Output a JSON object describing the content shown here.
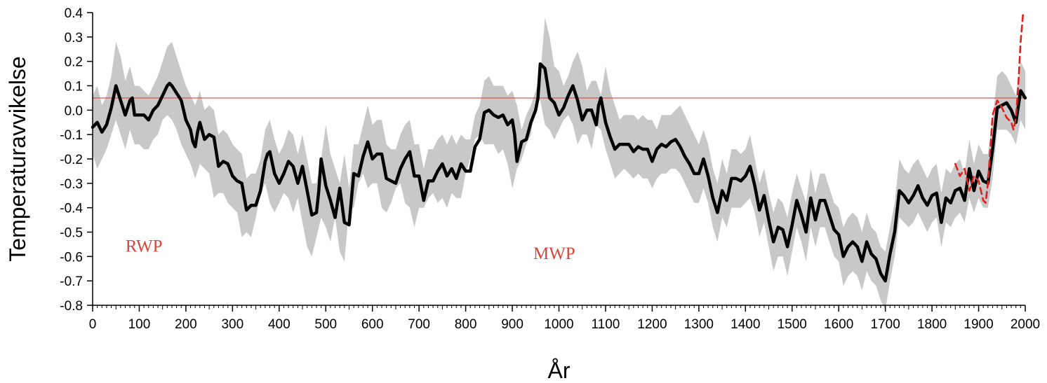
{
  "chart_data": {
    "type": "line",
    "title": "",
    "xlabel": "År",
    "ylabel": "Temperaturavvikelse",
    "xlim": [
      0,
      2000
    ],
    "ylim": [
      -0.8,
      0.4
    ],
    "xticks": [
      0,
      100,
      200,
      300,
      400,
      500,
      600,
      700,
      800,
      900,
      1000,
      1100,
      1200,
      1300,
      1400,
      1500,
      1600,
      1700,
      1800,
      1900,
      2000
    ],
    "yticks": [
      {
        "value": 0.4,
        "label": "0.4"
      },
      {
        "value": 0.3,
        "label": "0.3"
      },
      {
        "value": 0.2,
        "label": "0.2"
      },
      {
        "value": 0.1,
        "label": "0.1"
      },
      {
        "value": 0.0,
        "label": "0.0"
      },
      {
        "value": -0.1,
        "label": "-0.1"
      },
      {
        "value": -0.2,
        "label": "-0.2"
      },
      {
        "value": -0.3,
        "label": "-0.3"
      },
      {
        "value": -0.4,
        "label": "-0.4"
      },
      {
        "value": -0.5,
        "label": "-0.5"
      },
      {
        "value": -0.6,
        "label": "-0.6"
      },
      {
        "value": -0.7,
        "label": "-0.7"
      },
      {
        "value": -0.8,
        "label": "-0.8"
      }
    ],
    "grid": false,
    "reference_line": {
      "y": 0.05,
      "color": "#e0413a"
    },
    "annotations": [
      {
        "text": "RWP",
        "x": 110,
        "y": -0.58,
        "color": "#d9453b"
      },
      {
        "text": "MWP",
        "x": 990,
        "y": -0.61,
        "color": "#d9453b"
      }
    ],
    "series": [
      {
        "type": "line",
        "color": "#000000",
        "x": [
          0,
          10,
          20,
          30,
          40,
          50,
          55,
          60,
          70,
          80,
          85,
          90,
          100,
          110,
          120,
          130,
          140,
          150,
          160,
          165,
          170,
          180,
          190,
          200,
          210,
          215,
          220,
          225,
          230,
          240,
          250,
          260,
          270,
          280,
          290,
          300,
          310,
          320,
          330,
          340,
          350,
          360,
          370,
          375,
          380,
          390,
          400,
          410,
          420,
          430,
          440,
          450,
          460,
          470,
          480,
          485,
          490,
          500,
          510,
          520,
          530,
          540,
          550,
          560,
          570,
          580,
          590,
          600,
          610,
          620,
          630,
          640,
          650,
          660,
          670,
          680,
          690,
          700,
          710,
          720,
          730,
          740,
          750,
          760,
          770,
          780,
          790,
          800,
          810,
          820,
          830,
          840,
          850,
          860,
          870,
          880,
          890,
          900,
          905,
          910,
          920,
          930,
          940,
          950,
          955,
          960,
          970,
          980,
          990,
          1000,
          1010,
          1020,
          1030,
          1040,
          1050,
          1060,
          1070,
          1080,
          1085,
          1090,
          1100,
          1110,
          1120,
          1130,
          1140,
          1150,
          1160,
          1170,
          1180,
          1190,
          1200,
          1210,
          1220,
          1230,
          1240,
          1250,
          1260,
          1270,
          1280,
          1290,
          1300,
          1310,
          1320,
          1330,
          1340,
          1350,
          1360,
          1370,
          1380,
          1390,
          1400,
          1410,
          1420,
          1430,
          1440,
          1450,
          1460,
          1470,
          1480,
          1490,
          1500,
          1510,
          1520,
          1530,
          1540,
          1550,
          1560,
          1570,
          1580,
          1590,
          1600,
          1610,
          1620,
          1630,
          1640,
          1650,
          1660,
          1670,
          1680,
          1690,
          1700,
          1710,
          1720,
          1730,
          1740,
          1750,
          1760,
          1770,
          1780,
          1790,
          1800,
          1810,
          1820,
          1830,
          1840,
          1850,
          1860,
          1870,
          1880,
          1890,
          1900,
          1910,
          1920,
          1930,
          1940,
          1950,
          1960,
          1970,
          1980,
          1990,
          2000
        ],
        "y": [
          -0.07,
          -0.05,
          -0.09,
          -0.06,
          0.01,
          0.1,
          0.07,
          0.04,
          -0.02,
          0.04,
          0.05,
          -0.02,
          -0.02,
          -0.02,
          -0.04,
          0.0,
          0.02,
          0.06,
          0.1,
          0.11,
          0.1,
          0.07,
          0.04,
          -0.04,
          -0.08,
          -0.13,
          -0.15,
          -0.09,
          -0.05,
          -0.12,
          -0.1,
          -0.11,
          -0.23,
          -0.21,
          -0.22,
          -0.27,
          -0.29,
          -0.3,
          -0.41,
          -0.39,
          -0.39,
          -0.33,
          -0.21,
          -0.18,
          -0.17,
          -0.26,
          -0.3,
          -0.26,
          -0.21,
          -0.23,
          -0.3,
          -0.23,
          -0.33,
          -0.43,
          -0.42,
          -0.33,
          -0.2,
          -0.31,
          -0.37,
          -0.44,
          -0.32,
          -0.46,
          -0.47,
          -0.26,
          -0.27,
          -0.19,
          -0.13,
          -0.2,
          -0.18,
          -0.18,
          -0.28,
          -0.29,
          -0.3,
          -0.24,
          -0.2,
          -0.17,
          -0.27,
          -0.27,
          -0.37,
          -0.29,
          -0.29,
          -0.25,
          -0.22,
          -0.27,
          -0.24,
          -0.28,
          -0.22,
          -0.25,
          -0.25,
          -0.15,
          -0.12,
          -0.01,
          0.0,
          -0.02,
          -0.03,
          -0.02,
          -0.06,
          -0.04,
          -0.1,
          -0.21,
          -0.13,
          -0.12,
          -0.05,
          0.0,
          0.05,
          0.19,
          0.17,
          0.05,
          0.03,
          -0.02,
          0.01,
          0.06,
          0.1,
          0.04,
          -0.04,
          0.0,
          0.0,
          -0.06,
          0.02,
          0.05,
          -0.05,
          -0.11,
          -0.16,
          -0.14,
          -0.14,
          -0.14,
          -0.17,
          -0.15,
          -0.16,
          -0.16,
          -0.21,
          -0.16,
          -0.14,
          -0.15,
          -0.13,
          -0.12,
          -0.15,
          -0.19,
          -0.22,
          -0.26,
          -0.26,
          -0.2,
          -0.27,
          -0.36,
          -0.42,
          -0.33,
          -0.37,
          -0.28,
          -0.28,
          -0.29,
          -0.27,
          -0.23,
          -0.31,
          -0.41,
          -0.35,
          -0.45,
          -0.54,
          -0.48,
          -0.49,
          -0.56,
          -0.47,
          -0.37,
          -0.43,
          -0.5,
          -0.36,
          -0.45,
          -0.37,
          -0.37,
          -0.43,
          -0.49,
          -0.51,
          -0.6,
          -0.56,
          -0.54,
          -0.56,
          -0.62,
          -0.54,
          -0.59,
          -0.61,
          -0.67,
          -0.7,
          -0.59,
          -0.5,
          -0.33,
          -0.35,
          -0.38,
          -0.35,
          -0.31,
          -0.36,
          -0.39,
          -0.35,
          -0.34,
          -0.46,
          -0.36,
          -0.38,
          -0.33,
          -0.32,
          -0.37,
          -0.24,
          -0.33,
          -0.25,
          -0.29,
          -0.3,
          -0.16,
          0.01,
          0.02,
          0.03,
          0.0,
          -0.05,
          0.08,
          0.05
        ]
      },
      {
        "type": "band",
        "color": "#c8c8c8",
        "x": [
          0,
          10,
          20,
          30,
          40,
          50,
          60,
          70,
          80,
          90,
          100,
          110,
          120,
          130,
          140,
          150,
          160,
          170,
          180,
          190,
          200,
          210,
          220,
          230,
          240,
          250,
          260,
          270,
          280,
          290,
          300,
          310,
          320,
          330,
          340,
          350,
          360,
          370,
          380,
          390,
          400,
          410,
          420,
          430,
          440,
          450,
          460,
          470,
          480,
          490,
          500,
          510,
          520,
          530,
          540,
          550,
          560,
          570,
          580,
          590,
          600,
          610,
          620,
          630,
          640,
          650,
          660,
          670,
          680,
          690,
          700,
          710,
          720,
          730,
          740,
          750,
          760,
          770,
          780,
          790,
          800,
          810,
          820,
          830,
          840,
          850,
          860,
          870,
          880,
          890,
          900,
          910,
          920,
          930,
          940,
          950,
          960,
          970,
          980,
          990,
          1000,
          1010,
          1020,
          1030,
          1040,
          1050,
          1060,
          1070,
          1080,
          1090,
          1100,
          1110,
          1120,
          1130,
          1140,
          1150,
          1160,
          1170,
          1180,
          1190,
          1200,
          1210,
          1220,
          1230,
          1240,
          1250,
          1260,
          1270,
          1280,
          1290,
          1300,
          1310,
          1320,
          1330,
          1340,
          1350,
          1360,
          1370,
          1380,
          1390,
          1400,
          1410,
          1420,
          1430,
          1440,
          1450,
          1460,
          1470,
          1480,
          1490,
          1500,
          1510,
          1520,
          1530,
          1540,
          1550,
          1560,
          1570,
          1580,
          1590,
          1600,
          1610,
          1620,
          1630,
          1640,
          1650,
          1660,
          1670,
          1680,
          1690,
          1700,
          1710,
          1720,
          1730,
          1740,
          1750,
          1760,
          1770,
          1780,
          1790,
          1800,
          1810,
          1820,
          1830,
          1840,
          1850,
          1860,
          1870,
          1880,
          1890,
          1900,
          1910,
          1920,
          1930,
          1940,
          1950,
          1960,
          1970,
          1980,
          1990,
          2000
        ],
        "lower": [
          -0.18,
          -0.24,
          -0.2,
          -0.16,
          -0.1,
          -0.04,
          -0.1,
          -0.16,
          -0.08,
          -0.14,
          -0.14,
          -0.16,
          -0.16,
          -0.12,
          -0.1,
          -0.04,
          -0.02,
          -0.04,
          -0.08,
          -0.14,
          -0.18,
          -0.22,
          -0.28,
          -0.22,
          -0.24,
          -0.26,
          -0.36,
          -0.34,
          -0.34,
          -0.38,
          -0.4,
          -0.42,
          -0.52,
          -0.5,
          -0.52,
          -0.44,
          -0.34,
          -0.3,
          -0.38,
          -0.42,
          -0.38,
          -0.34,
          -0.36,
          -0.42,
          -0.36,
          -0.46,
          -0.56,
          -0.6,
          -0.52,
          -0.44,
          -0.48,
          -0.54,
          -0.44,
          -0.58,
          -0.62,
          -0.4,
          -0.4,
          -0.3,
          -0.26,
          -0.32,
          -0.3,
          -0.3,
          -0.4,
          -0.42,
          -0.38,
          -0.32,
          -0.3,
          -0.38,
          -0.4,
          -0.48,
          -0.4,
          -0.4,
          -0.36,
          -0.34,
          -0.38,
          -0.36,
          -0.4,
          -0.34,
          -0.36,
          -0.36,
          -0.26,
          -0.2,
          -0.12,
          -0.1,
          -0.14,
          -0.14,
          -0.14,
          -0.18,
          -0.16,
          -0.22,
          -0.32,
          -0.24,
          -0.2,
          -0.14,
          -0.1,
          0.04,
          0.04,
          -0.06,
          -0.08,
          -0.12,
          -0.08,
          -0.04,
          -0.02,
          -0.06,
          -0.14,
          -0.1,
          -0.1,
          -0.16,
          -0.06,
          -0.08,
          -0.16,
          -0.22,
          -0.28,
          -0.26,
          -0.24,
          -0.26,
          -0.28,
          -0.26,
          -0.28,
          -0.28,
          -0.32,
          -0.28,
          -0.26,
          -0.26,
          -0.24,
          -0.24,
          -0.26,
          -0.3,
          -0.34,
          -0.38,
          -0.38,
          -0.32,
          -0.38,
          -0.48,
          -0.54,
          -0.44,
          -0.48,
          -0.4,
          -0.4,
          -0.4,
          -0.38,
          -0.36,
          -0.42,
          -0.52,
          -0.46,
          -0.56,
          -0.66,
          -0.6,
          -0.6,
          -0.68,
          -0.58,
          -0.48,
          -0.54,
          -0.62,
          -0.48,
          -0.56,
          -0.48,
          -0.48,
          -0.54,
          -0.6,
          -0.62,
          -0.72,
          -0.68,
          -0.66,
          -0.68,
          -0.74,
          -0.66,
          -0.7,
          -0.72,
          -0.78,
          -0.82,
          -0.7,
          -0.6,
          -0.44,
          -0.46,
          -0.48,
          -0.46,
          -0.42,
          -0.46,
          -0.5,
          -0.46,
          -0.44,
          -0.56,
          -0.46,
          -0.48,
          -0.44,
          -0.42,
          -0.46,
          -0.36,
          -0.42,
          -0.36,
          -0.4,
          -0.4,
          -0.28,
          -0.08,
          -0.08,
          -0.08,
          -0.1,
          -0.14,
          -0.04,
          -0.08
        ],
        "upper": [
          0.06,
          0.1,
          0.02,
          0.06,
          0.14,
          0.28,
          0.22,
          0.12,
          0.18,
          0.1,
          0.1,
          0.08,
          0.06,
          0.1,
          0.14,
          0.2,
          0.26,
          0.28,
          0.22,
          0.16,
          0.1,
          0.06,
          0.02,
          0.08,
          0.0,
          0.02,
          0.0,
          -0.1,
          -0.08,
          -0.1,
          -0.14,
          -0.16,
          -0.18,
          -0.28,
          -0.26,
          -0.26,
          -0.2,
          -0.08,
          -0.04,
          -0.12,
          -0.18,
          -0.14,
          -0.08,
          -0.1,
          -0.18,
          -0.1,
          -0.2,
          -0.3,
          -0.3,
          -0.2,
          -0.06,
          -0.18,
          -0.24,
          -0.3,
          -0.18,
          -0.32,
          -0.14,
          -0.14,
          -0.06,
          0.02,
          -0.06,
          -0.04,
          -0.04,
          -0.14,
          -0.16,
          -0.16,
          -0.1,
          -0.06,
          -0.04,
          -0.14,
          -0.14,
          -0.24,
          -0.16,
          -0.16,
          -0.12,
          -0.1,
          -0.14,
          -0.1,
          -0.14,
          -0.1,
          -0.12,
          -0.12,
          -0.02,
          0.02,
          0.12,
          0.14,
          0.1,
          0.1,
          0.1,
          0.06,
          0.08,
          0.02,
          -0.08,
          -0.02,
          0.02,
          0.08,
          0.14,
          0.38,
          0.3,
          0.18,
          0.16,
          0.1,
          0.14,
          0.2,
          0.24,
          0.18,
          0.08,
          0.12,
          0.12,
          0.06,
          0.18,
          0.08,
          0.02,
          -0.04,
          -0.02,
          -0.02,
          -0.02,
          -0.04,
          -0.02,
          -0.04,
          -0.04,
          -0.08,
          -0.02,
          -0.02,
          -0.02,
          0.0,
          0.02,
          -0.02,
          -0.06,
          -0.1,
          -0.14,
          -0.08,
          -0.14,
          -0.24,
          -0.3,
          -0.2,
          -0.26,
          -0.16,
          -0.16,
          -0.18,
          -0.16,
          -0.1,
          -0.2,
          -0.3,
          -0.24,
          -0.34,
          -0.42,
          -0.36,
          -0.38,
          -0.44,
          -0.34,
          -0.26,
          -0.32,
          -0.38,
          -0.24,
          -0.34,
          -0.26,
          -0.26,
          -0.32,
          -0.38,
          -0.4,
          -0.48,
          -0.44,
          -0.42,
          -0.44,
          -0.5,
          -0.42,
          -0.48,
          -0.5,
          -0.56,
          -0.58,
          -0.48,
          -0.38,
          -0.2,
          -0.24,
          -0.26,
          -0.22,
          -0.2,
          -0.24,
          -0.28,
          -0.24,
          -0.22,
          -0.34,
          -0.24,
          -0.26,
          -0.22,
          -0.2,
          -0.26,
          -0.12,
          -0.22,
          -0.14,
          -0.18,
          -0.18,
          -0.04,
          0.14,
          0.16,
          0.14,
          0.1,
          0.06,
          0.2,
          0.16
        ]
      },
      {
        "type": "line",
        "color": "#e0201c",
        "dashed": true,
        "x": [
          1850,
          1860,
          1870,
          1880,
          1890,
          1900,
          1910,
          1915,
          1920,
          1930,
          1940,
          1950,
          1960,
          1970,
          1975,
          1980,
          1985,
          1990,
          1995
        ],
        "y": [
          -0.22,
          -0.27,
          -0.24,
          -0.33,
          -0.27,
          -0.29,
          -0.37,
          -0.38,
          -0.3,
          -0.02,
          0.04,
          0.01,
          -0.03,
          -0.05,
          -0.08,
          -0.03,
          0.1,
          0.28,
          0.39
        ]
      }
    ]
  }
}
